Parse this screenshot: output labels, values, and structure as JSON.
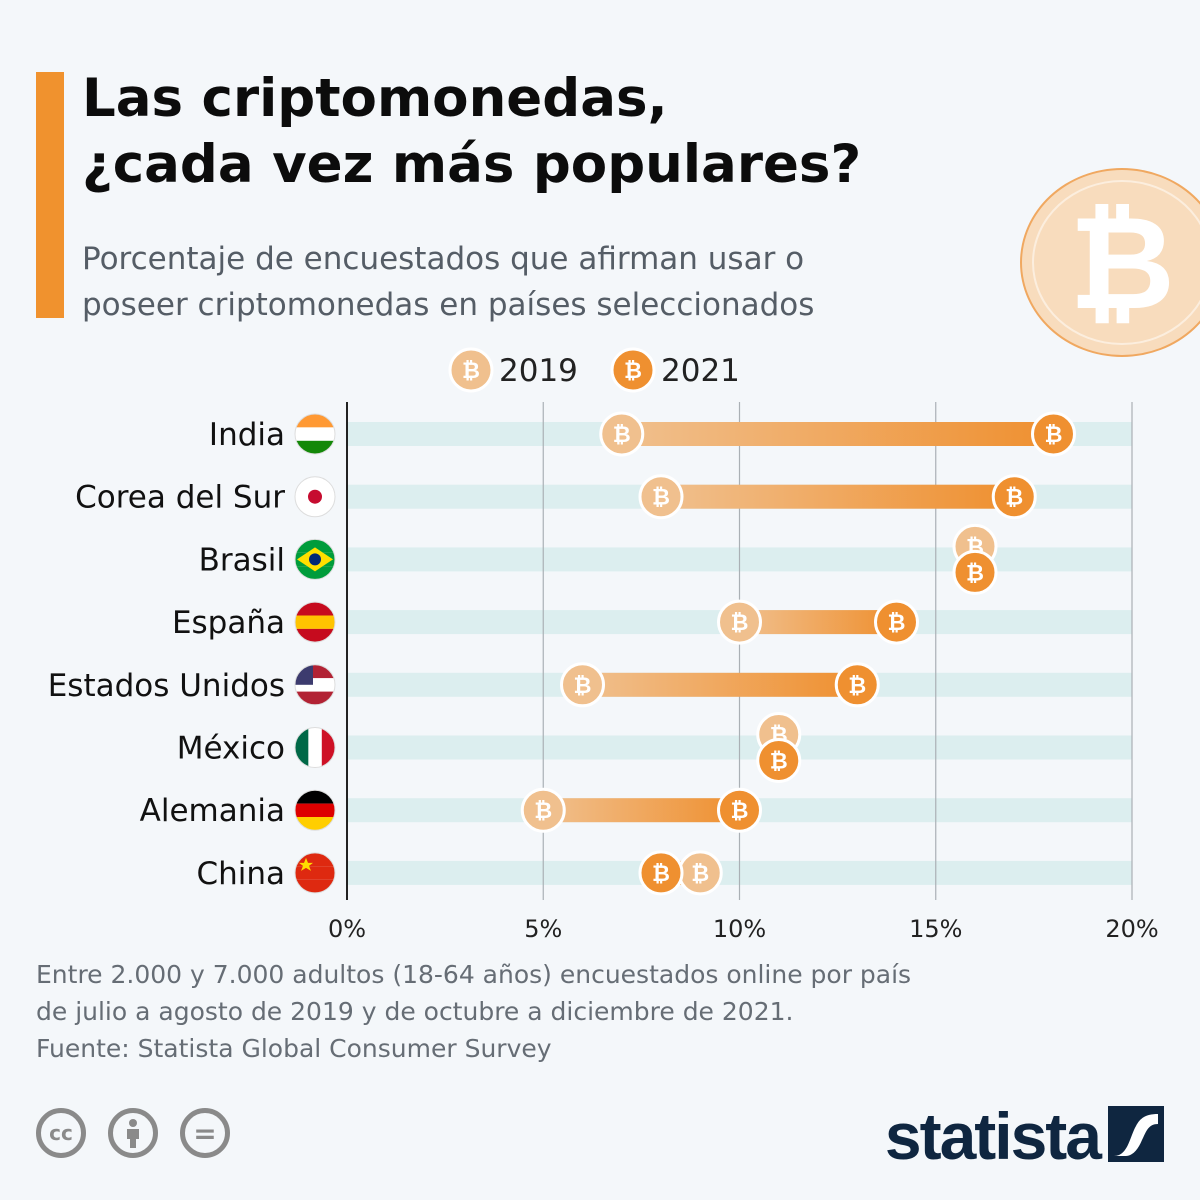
{
  "header": {
    "title_line1": "Las criptomonedas,",
    "title_line2": "¿cada vez más populares?",
    "subtitle_line1": "Porcentaje de encuestados que afirman usar o",
    "subtitle_line2": "poseer criptomonedas en países seleccionados",
    "deco_icon": "bitcoin-icon",
    "deco_symbol": "₿"
  },
  "colors": {
    "y2019": "#f0c08e",
    "y2021": "#ef9030",
    "band": "#dceeef",
    "bg": "#f4f7fa"
  },
  "chart_data": {
    "type": "dumbbell",
    "title": "Las criptomonedas, ¿cada vez más populares?",
    "legend": [
      "2019",
      "2021"
    ],
    "legend_position": "top",
    "categories": [
      "India",
      "Corea del Sur",
      "Brasil",
      "España",
      "Estados Unidos",
      "México",
      "Alemania",
      "China"
    ],
    "series": [
      {
        "name": "2019",
        "values": [
          7,
          8,
          16,
          10,
          6,
          11,
          5,
          9
        ]
      },
      {
        "name": "2021",
        "values": [
          18,
          17,
          16,
          14,
          13,
          11,
          10,
          8
        ]
      }
    ],
    "xlim": [
      0,
      20
    ],
    "xticks": [
      "0%",
      "5%",
      "10%",
      "15%",
      "20%"
    ],
    "grid": true
  },
  "footer": {
    "note_line1": "Entre 2.000 y 7.000 adultos (18-64 años) encuestados online por país",
    "note_line2": "de julio a agosto de 2019 y de octubre a diciembre de 2021.",
    "source": "Fuente: Statista Global Consumer Survey",
    "cc1": "cc",
    "cc3": "=",
    "brand": "statista"
  }
}
